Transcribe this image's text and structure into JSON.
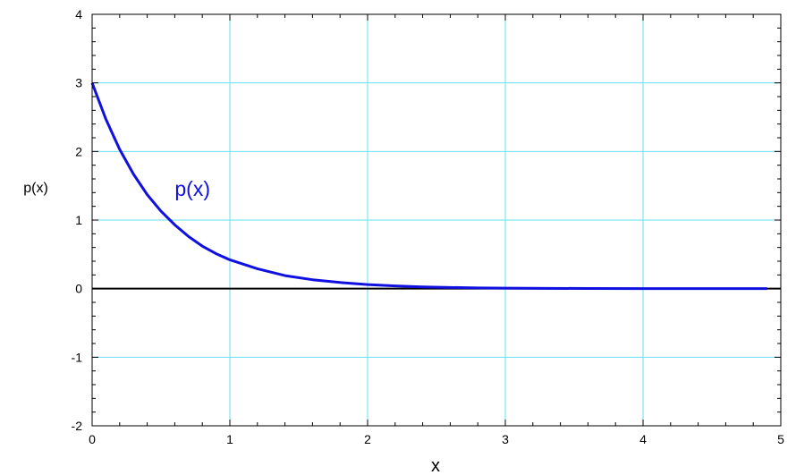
{
  "chart_data": {
    "type": "line",
    "xlabel": "x",
    "ylabel": "p(x)",
    "xlim": [
      0,
      5
    ],
    "ylim": [
      -2,
      4
    ],
    "xticks": [
      "0",
      "1",
      "2",
      "3",
      "4",
      "5"
    ],
    "yticks": [
      "-2",
      "-1",
      "0",
      "1",
      "2",
      "3",
      "4"
    ],
    "grid": true,
    "colors": {
      "grid": "#66e0ee",
      "series": "#1010e0",
      "axis": "#000000"
    },
    "series": [
      {
        "name": "p(x)",
        "x": [
          0,
          0.1,
          0.2,
          0.3,
          0.4,
          0.5,
          0.6,
          0.7,
          0.8,
          0.9,
          1.0,
          1.2,
          1.4,
          1.6,
          1.8,
          2.0,
          2.2,
          2.4,
          2.6,
          2.8,
          3.0,
          3.3,
          3.6,
          4.0,
          4.4,
          4.9
        ],
        "y": [
          3.0,
          2.47,
          2.03,
          1.67,
          1.37,
          1.13,
          0.93,
          0.76,
          0.62,
          0.51,
          0.42,
          0.29,
          0.19,
          0.13,
          0.09,
          0.06,
          0.04,
          0.025,
          0.017,
          0.011,
          0.007,
          0.004,
          0.002,
          0.001,
          0.0005,
          0.0002
        ]
      }
    ],
    "annotation": {
      "text": "p(x)",
      "x": 0.6,
      "y": 1.35
    }
  }
}
